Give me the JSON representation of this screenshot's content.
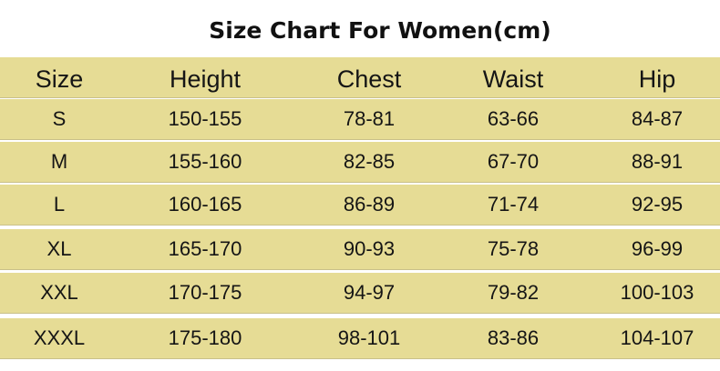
{
  "title": "Size Chart For Women(cm)",
  "table": {
    "headers": [
      "Size",
      "Height",
      "Chest",
      "Waist",
      "Hip"
    ],
    "rows": [
      [
        "S",
        "150-155",
        "78-81",
        "63-66",
        "84-87"
      ],
      [
        "M",
        "155-160",
        "82-85",
        "67-70",
        "88-91"
      ],
      [
        "L",
        "160-165",
        "86-89",
        "71-74",
        "92-95"
      ],
      [
        "XL",
        "165-170",
        "90-93",
        "75-78",
        "96-99"
      ],
      [
        "XXL",
        "170-175",
        "94-97",
        "79-82",
        "100-103"
      ],
      [
        "XXXL",
        "175-180",
        "98-101",
        "83-86",
        "104-107"
      ]
    ]
  },
  "colors": {
    "band": "#e6dc95",
    "background": "#ffffff",
    "text": "#111111"
  }
}
